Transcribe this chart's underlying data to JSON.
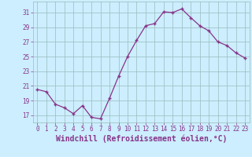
{
  "hours": [
    0,
    1,
    2,
    3,
    4,
    5,
    6,
    7,
    8,
    9,
    10,
    11,
    12,
    13,
    14,
    15,
    16,
    17,
    18,
    19,
    20,
    21,
    22,
    23
  ],
  "values": [
    20.5,
    20.2,
    18.5,
    18.0,
    17.2,
    18.3,
    16.7,
    16.5,
    19.3,
    22.3,
    25.0,
    27.2,
    29.2,
    29.5,
    31.1,
    31.0,
    31.5,
    30.3,
    29.2,
    28.5,
    27.0,
    26.5,
    25.5,
    24.8
  ],
  "line_color": "#883388",
  "marker": "P",
  "marker_size": 2.5,
  "bg_color": "#cceeff",
  "grid_color": "#99bbbb",
  "xlabel": "Windchill (Refroidissement éolien,°C)",
  "xlabel_color": "#883388",
  "yticks": [
    17,
    19,
    21,
    23,
    25,
    27,
    29,
    31
  ],
  "xticks": [
    0,
    1,
    2,
    3,
    4,
    5,
    6,
    7,
    8,
    9,
    10,
    11,
    12,
    13,
    14,
    15,
    16,
    17,
    18,
    19,
    20,
    21,
    22,
    23
  ],
  "ylim": [
    16.0,
    32.5
  ],
  "xlim": [
    -0.5,
    23.5
  ],
  "tick_color": "#883388",
  "tick_fontsize": 5.5,
  "xlabel_fontsize": 7.0
}
